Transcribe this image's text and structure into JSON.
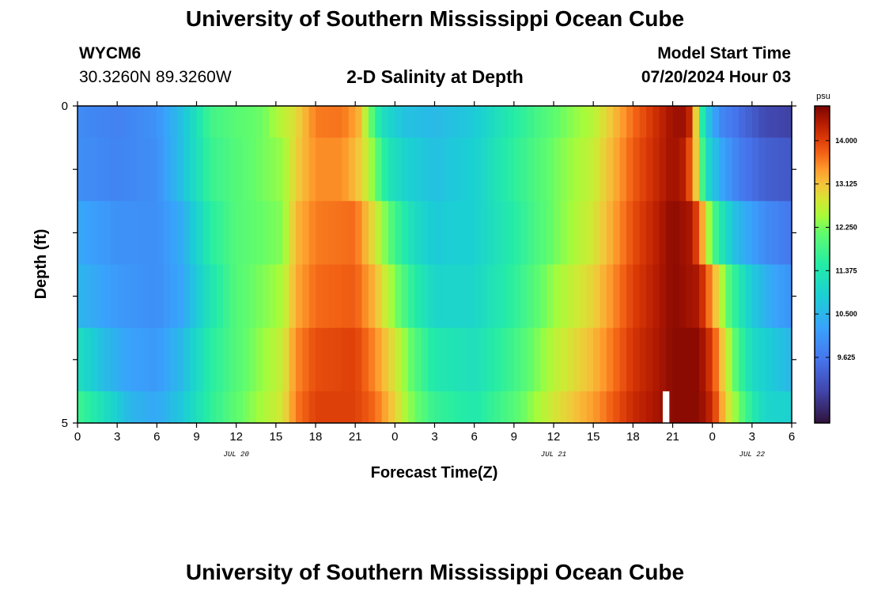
{
  "header": {
    "title": "University of Southern Mississippi Ocean Cube",
    "station": "WYCM6",
    "coords": "30.3260N  89.3260W",
    "subtitle": "2-D Salinity at Depth",
    "model_start_label": "Model Start Time",
    "model_start_value": "07/20/2024 Hour 03"
  },
  "footer": {
    "title": "University of Southern Mississippi Ocean Cube"
  },
  "chart_data": {
    "type": "heatmap",
    "xlabel": "Forecast Time(Z)",
    "ylabel": "Depth (ft)",
    "x_range_hours": [
      0,
      54
    ],
    "y_range_ft": [
      0,
      5
    ],
    "x_tick_labels": [
      "0",
      "3",
      "6",
      "9",
      "12",
      "15",
      "18",
      "21",
      "0",
      "3",
      "6",
      "9",
      "12",
      "15",
      "18",
      "21",
      "0",
      "3",
      "6"
    ],
    "date_labels": [
      {
        "label": "JUL 20",
        "hour": 12
      },
      {
        "label": "JUL 21",
        "hour": 36
      },
      {
        "label": "JUL 22",
        "hour": 51
      }
    ],
    "y_tick_labels": [
      {
        "value": 0,
        "label": "0"
      },
      {
        "value": 5,
        "label": "5"
      }
    ],
    "layer_bounds_ft": [
      0,
      0.5,
      1.5,
      2.5,
      3.5,
      4.5,
      5
    ],
    "colorbar": {
      "unit": "psu",
      "range": [
        8.3,
        14.7
      ],
      "ticks": [
        "14.000",
        "13.125",
        "12.250",
        "11.375",
        "10.500",
        "9.625"
      ]
    },
    "missing": [
      {
        "hour": 44.5,
        "layer": 5
      }
    ],
    "profiles": [
      {
        "layer": 0,
        "keypoints": [
          [
            0,
            9.9
          ],
          [
            3,
            9.75
          ],
          [
            6,
            10.0
          ],
          [
            8,
            10.7
          ],
          [
            10,
            11.8
          ],
          [
            12,
            12.05
          ],
          [
            14,
            12.2
          ],
          [
            16.5,
            12.9
          ],
          [
            18,
            13.6
          ],
          [
            20,
            13.65
          ],
          [
            21.2,
            13.3
          ],
          [
            22.3,
            12.0
          ],
          [
            23,
            11.2
          ],
          [
            24.5,
            10.7
          ],
          [
            27,
            10.55
          ],
          [
            30,
            10.8
          ],
          [
            33,
            11.5
          ],
          [
            36,
            12.1
          ],
          [
            39,
            12.6
          ],
          [
            42,
            13.7
          ],
          [
            45,
            14.5
          ],
          [
            46,
            14.5
          ],
          [
            46.5,
            14.0
          ],
          [
            47,
            12.0
          ],
          [
            47.5,
            10.9
          ],
          [
            48.5,
            9.9
          ],
          [
            50,
            9.5
          ],
          [
            52,
            9.0
          ],
          [
            54,
            8.9
          ]
        ]
      },
      {
        "layer": 1,
        "keypoints": [
          [
            0,
            9.95
          ],
          [
            3,
            9.8
          ],
          [
            6,
            9.95
          ],
          [
            8,
            10.7
          ],
          [
            10,
            11.7
          ],
          [
            12,
            12.0
          ],
          [
            15.5,
            12.4
          ],
          [
            16.5,
            13.0
          ],
          [
            18,
            13.5
          ],
          [
            20,
            13.5
          ],
          [
            21.5,
            13.0
          ],
          [
            22.5,
            12.2
          ],
          [
            23.5,
            11.3
          ],
          [
            25,
            10.9
          ],
          [
            27,
            10.65
          ],
          [
            30,
            10.9
          ],
          [
            33,
            11.6
          ],
          [
            36,
            12.2
          ],
          [
            39,
            12.7
          ],
          [
            42,
            13.8
          ],
          [
            45,
            14.5
          ],
          [
            46,
            14.3
          ],
          [
            46.7,
            13.2
          ],
          [
            47.5,
            11.2
          ],
          [
            48.5,
            10.4
          ],
          [
            50,
            9.7
          ],
          [
            52,
            9.3
          ],
          [
            54,
            9.2
          ]
        ]
      },
      {
        "layer": 2,
        "keypoints": [
          [
            0,
            10.3
          ],
          [
            3,
            10.0
          ],
          [
            6,
            9.95
          ],
          [
            8,
            10.4
          ],
          [
            10,
            11.5
          ],
          [
            12,
            12.0
          ],
          [
            15.5,
            12.3
          ],
          [
            16.5,
            13.2
          ],
          [
            18,
            13.6
          ],
          [
            21,
            13.7
          ],
          [
            22.5,
            12.8
          ],
          [
            24,
            11.8
          ],
          [
            25.5,
            11.1
          ],
          [
            27,
            10.8
          ],
          [
            30,
            10.9
          ],
          [
            33,
            11.5
          ],
          [
            36,
            12.2
          ],
          [
            39,
            12.8
          ],
          [
            42,
            13.9
          ],
          [
            45,
            14.6
          ],
          [
            46.5,
            14.4
          ],
          [
            47.2,
            13.4
          ],
          [
            48,
            12.0
          ],
          [
            49,
            11.1
          ],
          [
            50,
            10.5
          ],
          [
            52,
            9.9
          ],
          [
            54,
            9.6
          ]
        ]
      },
      {
        "layer": 3,
        "keypoints": [
          [
            0,
            10.5
          ],
          [
            3,
            10.1
          ],
          [
            6,
            9.95
          ],
          [
            8,
            10.3
          ],
          [
            10,
            11.3
          ],
          [
            12,
            12.0
          ],
          [
            15.5,
            12.5
          ],
          [
            16.5,
            13.3
          ],
          [
            18,
            13.7
          ],
          [
            21,
            13.8
          ],
          [
            22.5,
            13.2
          ],
          [
            24,
            12.3
          ],
          [
            25.5,
            11.5
          ],
          [
            27,
            11.0
          ],
          [
            30,
            11.0
          ],
          [
            33,
            11.6
          ],
          [
            36,
            12.4
          ],
          [
            39,
            13.0
          ],
          [
            42,
            14.0
          ],
          [
            45,
            14.6
          ],
          [
            47,
            14.4
          ],
          [
            48,
            13.4
          ],
          [
            49,
            12.2
          ],
          [
            50,
            11.4
          ],
          [
            51,
            10.8
          ],
          [
            52.5,
            10.3
          ],
          [
            54,
            10.0
          ]
        ]
      },
      {
        "layer": 4,
        "keypoints": [
          [
            0,
            11.2
          ],
          [
            2,
            10.6
          ],
          [
            4,
            10.2
          ],
          [
            6,
            10.1
          ],
          [
            8,
            10.6
          ],
          [
            10,
            11.5
          ],
          [
            12,
            12.0
          ],
          [
            15.5,
            12.7
          ],
          [
            16.5,
            13.5
          ],
          [
            18,
            13.9
          ],
          [
            21,
            14.0
          ],
          [
            22.5,
            13.5
          ],
          [
            24,
            12.8
          ],
          [
            25.5,
            12.0
          ],
          [
            27,
            11.4
          ],
          [
            30,
            11.2
          ],
          [
            33,
            11.8
          ],
          [
            36,
            12.6
          ],
          [
            39,
            13.2
          ],
          [
            42,
            14.1
          ],
          [
            45,
            14.6
          ],
          [
            47,
            14.6
          ],
          [
            48,
            14.0
          ],
          [
            49,
            12.8
          ],
          [
            50,
            11.8
          ],
          [
            51,
            11.1
          ],
          [
            53,
            10.7
          ],
          [
            54,
            10.5
          ]
        ]
      },
      {
        "layer": 5,
        "keypoints": [
          [
            0,
            11.8
          ],
          [
            2,
            11.2
          ],
          [
            4,
            10.5
          ],
          [
            6,
            10.3
          ],
          [
            8,
            10.8
          ],
          [
            10,
            11.6
          ],
          [
            12,
            12.1
          ],
          [
            15.5,
            12.8
          ],
          [
            16.5,
            13.6
          ],
          [
            18,
            14.0
          ],
          [
            21,
            14.0
          ],
          [
            22.5,
            13.7
          ],
          [
            24,
            13.0
          ],
          [
            25,
            12.4
          ],
          [
            27,
            11.7
          ],
          [
            30,
            11.4
          ],
          [
            33,
            12.0
          ],
          [
            36,
            12.8
          ],
          [
            39,
            13.4
          ],
          [
            42,
            14.2
          ],
          [
            45,
            14.6
          ],
          [
            47,
            14.6
          ],
          [
            48,
            14.2
          ],
          [
            49,
            13.0
          ],
          [
            50,
            12.2
          ],
          [
            51,
            11.5
          ],
          [
            52,
            11.0
          ],
          [
            54,
            10.9
          ]
        ]
      }
    ]
  }
}
